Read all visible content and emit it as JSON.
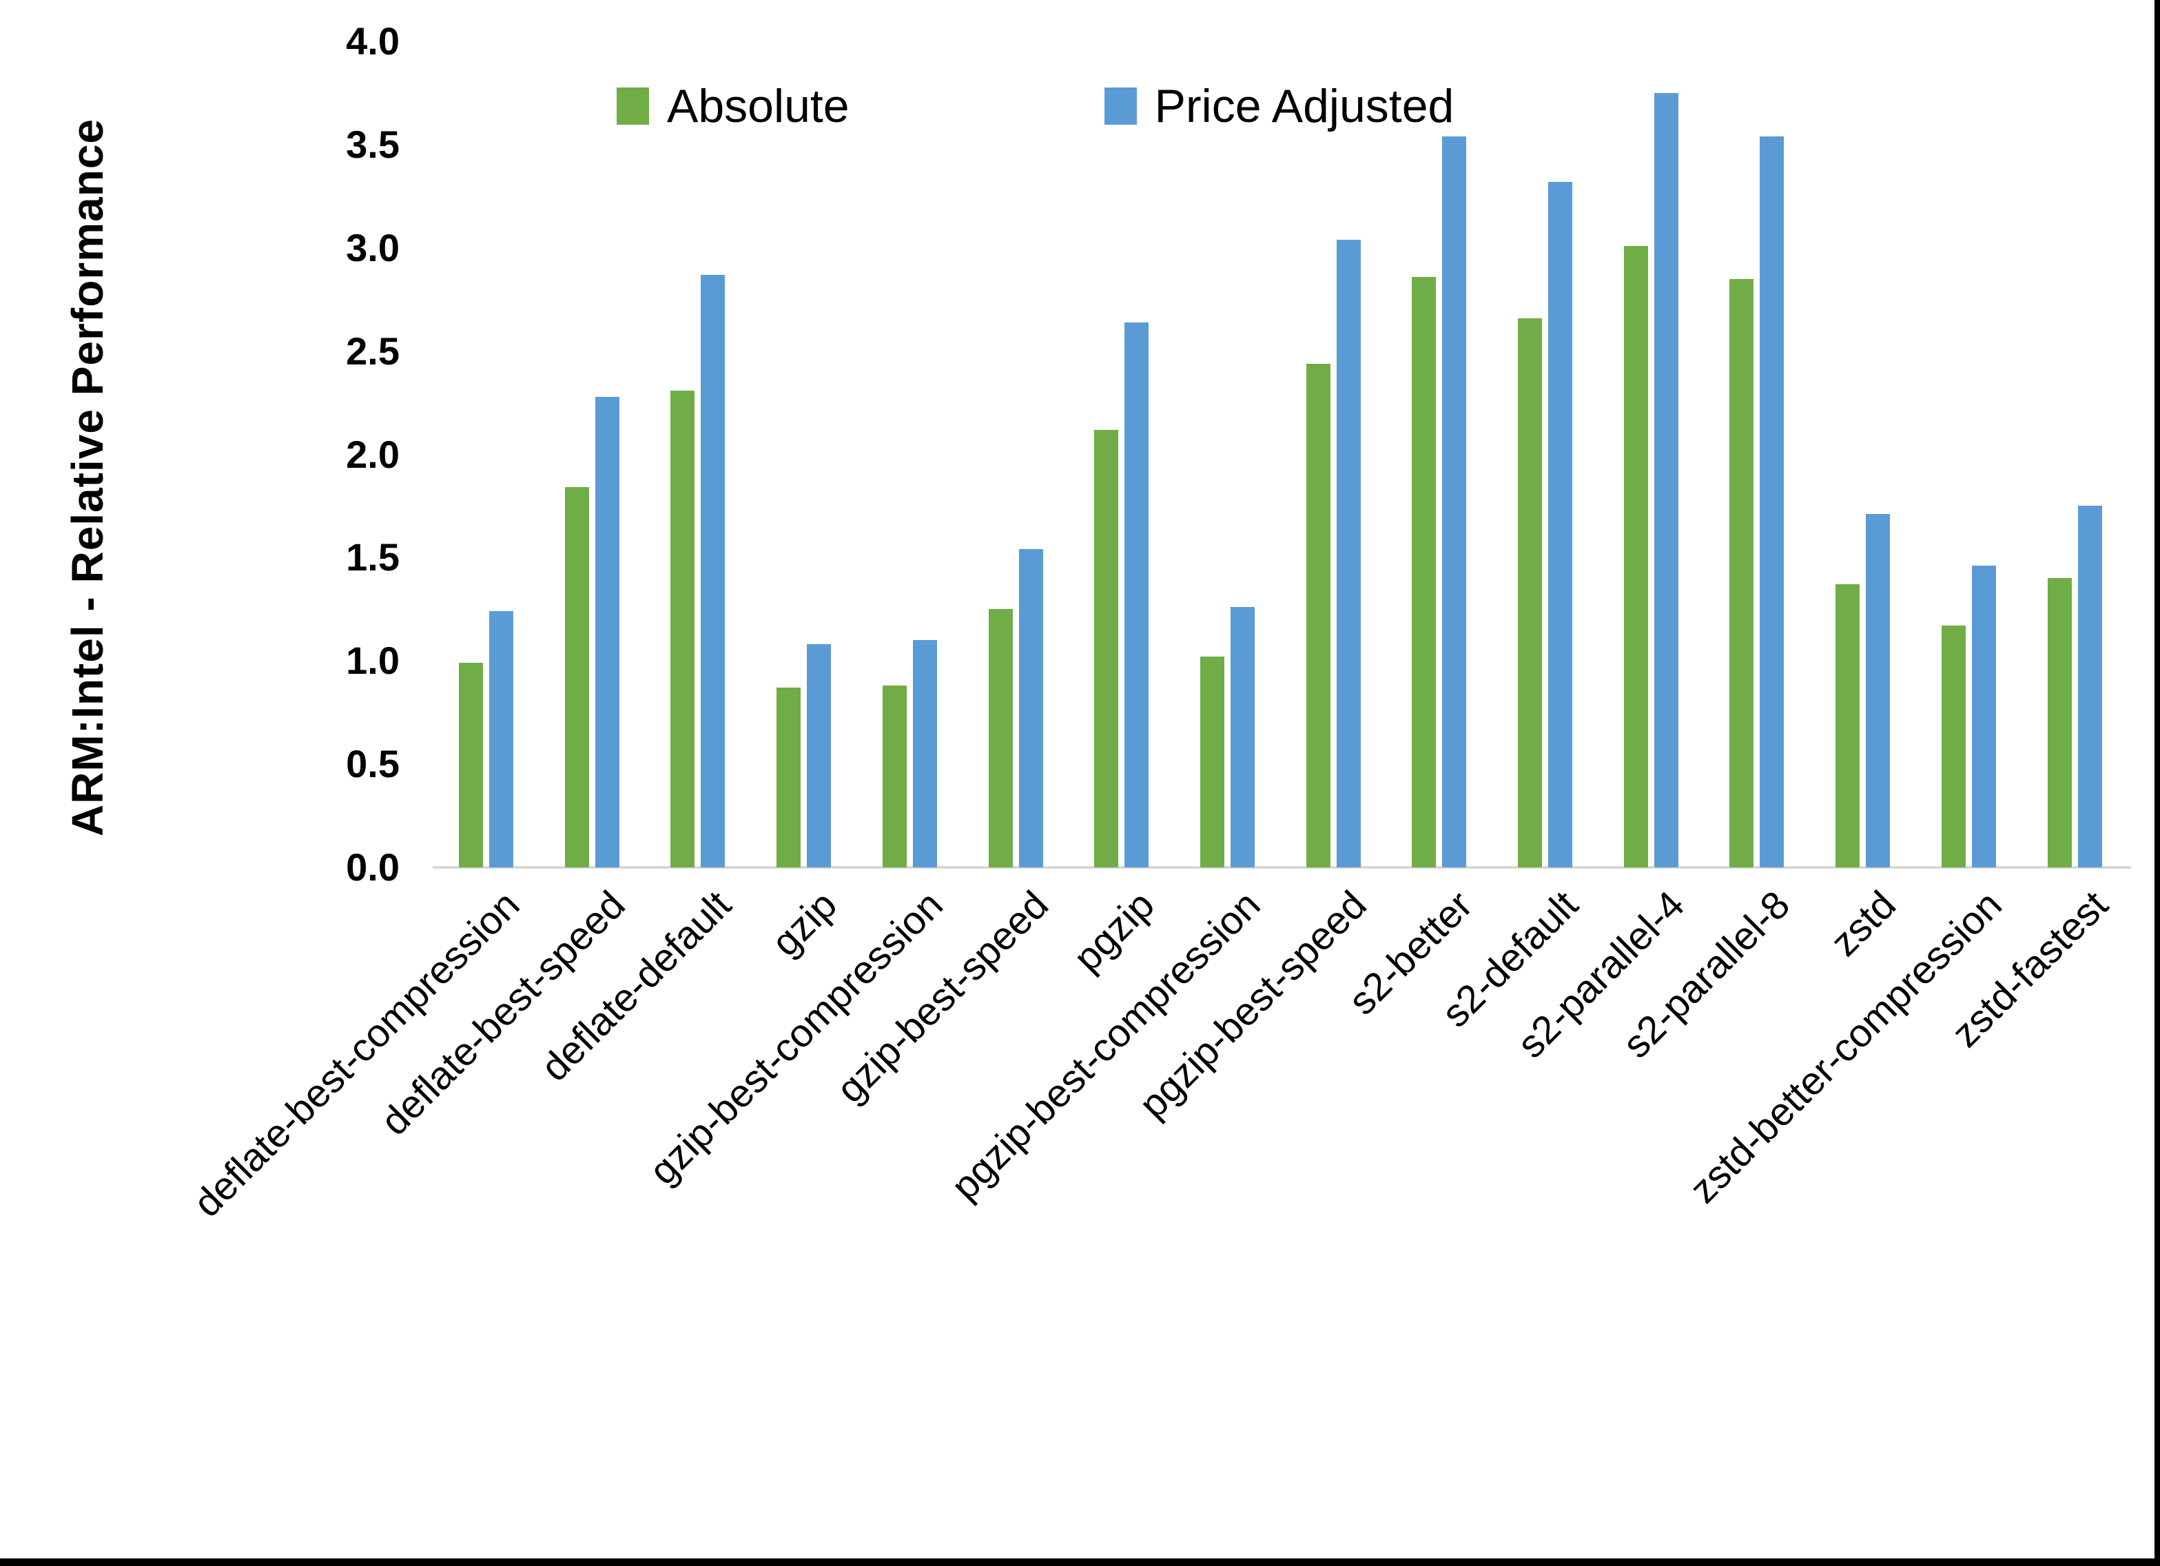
{
  "chart_data": {
    "type": "bar",
    "title": "",
    "xlabel": "",
    "ylabel": "ARM:Intel - Relative Performance",
    "ylim": [
      0.0,
      4.0
    ],
    "ytick_step": 0.5,
    "grid": false,
    "legend_position": "top-center",
    "categories": [
      "deflate-best-compression",
      "deflate-best-speed",
      "deflate-default",
      "gzip",
      "gzip-best-compression",
      "gzip-best-speed",
      "pgzip",
      "pgzip-best-compression",
      "pgzip-best-speed",
      "s2-better",
      "s2-default",
      "s2-parallel-4",
      "s2-parallel-8",
      "zstd",
      "zstd-better-compression",
      "zstd-fastest"
    ],
    "series": [
      {
        "name": "Absolute",
        "color": "#70AD47",
        "values": [
          0.99,
          1.84,
          2.31,
          0.87,
          0.88,
          1.25,
          2.12,
          1.02,
          2.44,
          2.86,
          2.66,
          3.01,
          2.85,
          1.37,
          1.17,
          1.4
        ]
      },
      {
        "name": "Price Adjusted",
        "color": "#5B9BD5",
        "values": [
          1.24,
          2.28,
          2.87,
          1.08,
          1.1,
          1.54,
          2.64,
          1.26,
          3.04,
          3.54,
          3.32,
          3.75,
          3.54,
          1.71,
          1.46,
          1.75
        ]
      }
    ],
    "colors": {
      "axis_line": "#D9D9D9",
      "text": "#000000",
      "background": "#FFFFFF",
      "edge_border": "#000000"
    }
  }
}
